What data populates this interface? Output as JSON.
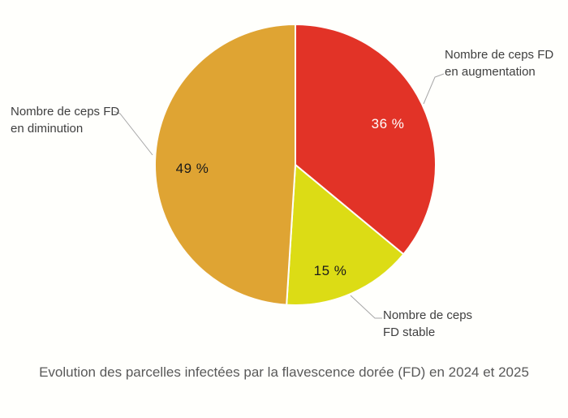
{
  "chart_data": {
    "type": "pie",
    "title": "Evolution des parcelles infectées par la flavescence dorée (FD) en 2024 et 2025",
    "unit": "%",
    "start_angle_deg": 0,
    "direction": "clockwise",
    "grid": false,
    "legend_position": "callout-labels",
    "slices": [
      {
        "name": "Nombre de ceps FD en augmentation",
        "value": 36,
        "display": "36 %",
        "color": "#E23327",
        "label_color": "#FFFFFF"
      },
      {
        "name": "Nombre de ceps FD stable",
        "value": 15,
        "display": "15 %",
        "color": "#DCDC15",
        "label_color": "#1A1A1A"
      },
      {
        "name": "Nombre de ceps FD en diminution",
        "value": 49,
        "display": "49 %",
        "color": "#DFA433",
        "label_color": "#1A1A1A"
      }
    ]
  },
  "callouts": {
    "augmentation": {
      "line1": "Nombre de ceps FD",
      "line2": "en augmentation"
    },
    "stable": {
      "line1": "Nombre de ceps",
      "line2": "FD stable"
    },
    "diminution": {
      "line1": "Nombre de ceps FD",
      "line2": "en diminution"
    }
  },
  "style": {
    "background": "#FFFFFC",
    "leader_line_color": "#A6A6A6",
    "callout_text_color": "#3F3F3F",
    "title_color": "#595959",
    "slice_border_color": "#FFFFFC"
  }
}
